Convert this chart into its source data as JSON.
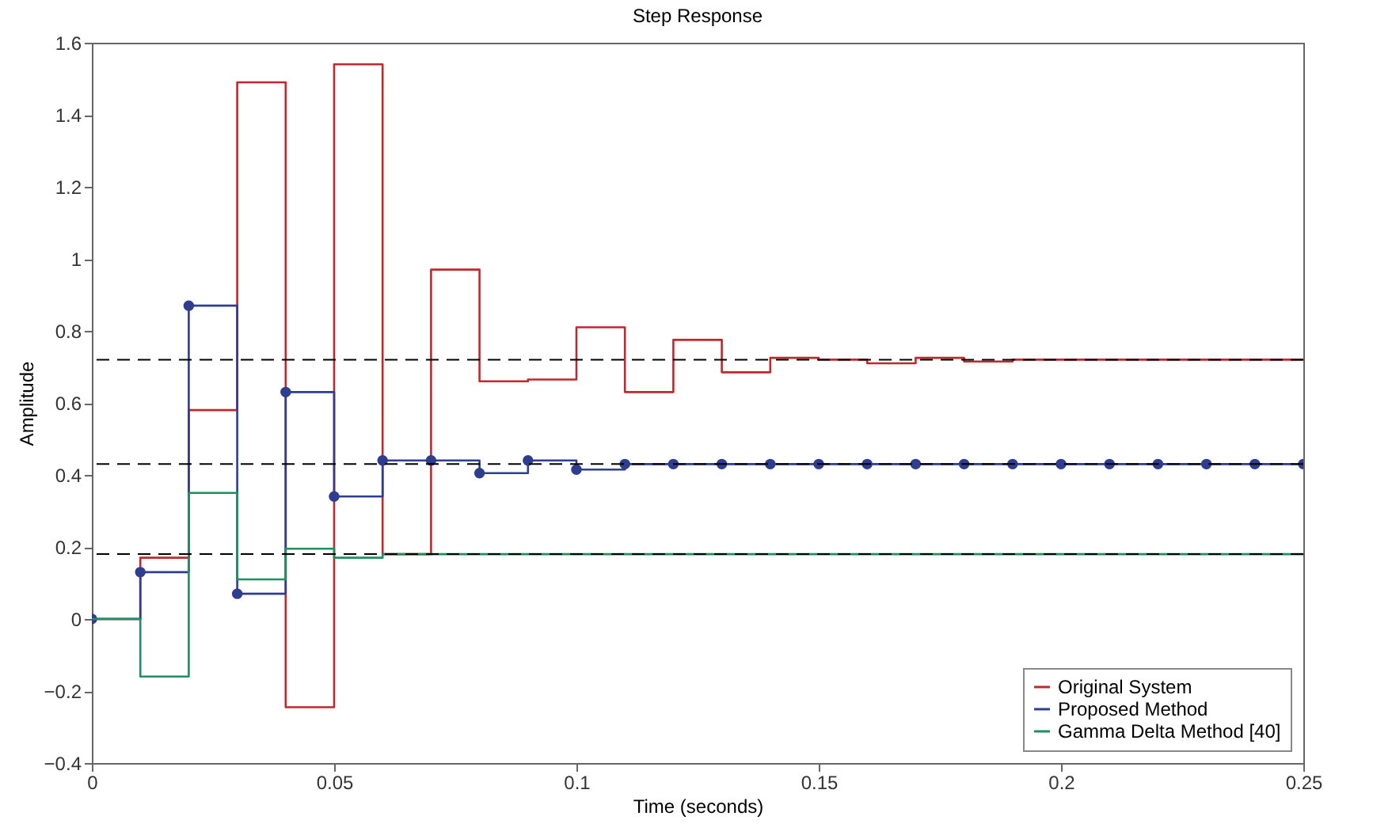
{
  "chart_data": {
    "type": "step",
    "title": "Step Response",
    "xlabel": "Time (seconds)",
    "ylabel": "Amplitude",
    "x": [
      0,
      0.01,
      0.02,
      0.03,
      0.04,
      0.05,
      0.06,
      0.07,
      0.08,
      0.09,
      0.1,
      0.11,
      0.12,
      0.13,
      0.14,
      0.15,
      0.16,
      0.17,
      0.18,
      0.19,
      0.2,
      0.21,
      0.22,
      0.23,
      0.24,
      0.25
    ],
    "series": [
      {
        "name": "Original System",
        "color": "#c0282d",
        "marker": "none",
        "line_style": "solid",
        "values": [
          0,
          0.17,
          0.58,
          1.49,
          -0.245,
          1.54,
          0.18,
          0.97,
          0.66,
          0.665,
          0.81,
          0.63,
          0.775,
          0.685,
          0.725,
          0.72,
          0.71,
          0.725,
          0.715,
          0.72,
          0.72,
          0.72,
          0.72,
          0.72,
          0.72,
          0.72
        ]
      },
      {
        "name": "Proposed Method",
        "color": "#2e3d8f",
        "marker": "circle",
        "line_style": "solid",
        "values": [
          0,
          0.13,
          0.87,
          0.07,
          0.63,
          0.34,
          0.44,
          0.44,
          0.405,
          0.44,
          0.415,
          0.43,
          0.43,
          0.43,
          0.43,
          0.43,
          0.43,
          0.43,
          0.43,
          0.43,
          0.43,
          0.43,
          0.43,
          0.43,
          0.43,
          0.43
        ]
      },
      {
        "name": "Gamma Delta Method [40]",
        "color": "#1f8f5f",
        "marker": "none",
        "line_style": "solid",
        "values": [
          0,
          -0.16,
          0.35,
          0.11,
          0.195,
          0.17,
          0.18,
          0.18,
          0.18,
          0.18,
          0.18,
          0.18,
          0.18,
          0.18,
          0.18,
          0.18,
          0.18,
          0.18,
          0.18,
          0.18,
          0.18,
          0.18,
          0.18,
          0.18,
          0.18,
          0.18
        ]
      }
    ],
    "xlim": [
      0,
      0.25
    ],
    "xticks": [
      0,
      0.05,
      0.1,
      0.15,
      0.2,
      0.25
    ],
    "ylim": [
      -0.4,
      1.6
    ],
    "yticks": [
      -0.4,
      -0.2,
      0,
      0.2,
      0.4,
      0.6,
      0.8,
      1,
      1.2,
      1.4,
      1.6
    ],
    "ref_lines": [
      {
        "axis": "y",
        "value": 0.72,
        "color": "#000000",
        "line_style": "dashed"
      },
      {
        "axis": "y",
        "value": 0.43,
        "color": "#000000",
        "line_style": "dashed"
      },
      {
        "axis": "y",
        "value": 0.18,
        "color": "#000000",
        "line_style": "dashed"
      }
    ],
    "grid": false,
    "legend": "bottom right"
  }
}
